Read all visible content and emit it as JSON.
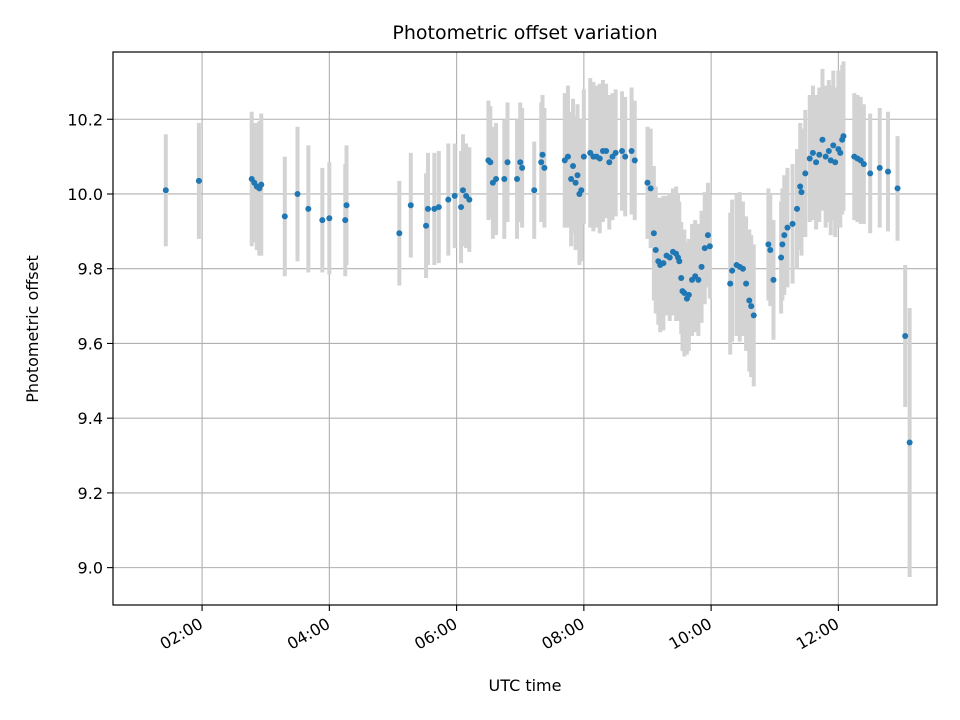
{
  "chart_data": {
    "type": "scatter",
    "title": "Photometric offset variation",
    "xlabel": "UTC time",
    "ylabel": "Photometric offset",
    "x_unit": "hours UTC",
    "xlim": [
      0.6,
      13.55
    ],
    "ylim": [
      8.9,
      10.38
    ],
    "x_ticks": [
      {
        "value": 2,
        "label": "02:00"
      },
      {
        "value": 4,
        "label": "04:00"
      },
      {
        "value": 6,
        "label": "06:00"
      },
      {
        "value": 8,
        "label": "08:00"
      },
      {
        "value": 10,
        "label": "10:00"
      },
      {
        "value": 12,
        "label": "12:00"
      }
    ],
    "y_ticks": [
      {
        "value": 9.0,
        "label": "9.0"
      },
      {
        "value": 9.2,
        "label": "9.2"
      },
      {
        "value": 9.4,
        "label": "9.4"
      },
      {
        "value": 9.6,
        "label": "9.6"
      },
      {
        "value": 9.8,
        "label": "9.8"
      },
      {
        "value": 10.0,
        "label": "10.0"
      },
      {
        "value": 10.2,
        "label": "10.2"
      }
    ],
    "grid": true,
    "colors": {
      "point": "#1f77b4",
      "errorbar": "#d3d3d3",
      "grid": "#b0b0b0"
    },
    "points": [
      [
        1.43,
        10.01,
        0.15
      ],
      [
        1.95,
        10.035,
        0.155
      ],
      [
        2.78,
        10.04,
        0.18
      ],
      [
        2.82,
        10.03,
        0.16
      ],
      [
        2.86,
        10.02,
        0.17
      ],
      [
        2.9,
        10.015,
        0.18
      ],
      [
        2.93,
        10.025,
        0.19
      ],
      [
        3.3,
        9.94,
        0.16
      ],
      [
        3.5,
        10.0,
        0.18
      ],
      [
        3.67,
        9.96,
        0.17
      ],
      [
        3.89,
        9.93,
        0.14
      ],
      [
        4.0,
        9.935,
        0.15
      ],
      [
        4.25,
        9.93,
        0.15
      ],
      [
        4.27,
        9.97,
        0.16
      ],
      [
        5.1,
        9.895,
        0.14
      ],
      [
        5.28,
        9.97,
        0.14
      ],
      [
        5.52,
        9.915,
        0.14
      ],
      [
        5.55,
        9.96,
        0.15
      ],
      [
        5.65,
        9.96,
        0.15
      ],
      [
        5.72,
        9.965,
        0.15
      ],
      [
        5.87,
        9.985,
        0.15
      ],
      [
        5.97,
        9.995,
        0.14
      ],
      [
        6.07,
        9.965,
        0.15
      ],
      [
        6.1,
        10.01,
        0.15
      ],
      [
        6.15,
        9.995,
        0.14
      ],
      [
        6.2,
        9.985,
        0.14
      ],
      [
        6.5,
        10.09,
        0.16
      ],
      [
        6.53,
        10.085,
        0.15
      ],
      [
        6.57,
        10.03,
        0.15
      ],
      [
        6.62,
        10.04,
        0.15
      ],
      [
        6.75,
        10.04,
        0.16
      ],
      [
        6.8,
        10.085,
        0.16
      ],
      [
        6.95,
        10.04,
        0.16
      ],
      [
        7.0,
        10.085,
        0.16
      ],
      [
        7.03,
        10.07,
        0.16
      ],
      [
        7.22,
        10.01,
        0.13
      ],
      [
        7.33,
        10.085,
        0.16
      ],
      [
        7.35,
        10.105,
        0.16
      ],
      [
        7.38,
        10.07,
        0.16
      ],
      [
        7.7,
        10.09,
        0.18
      ],
      [
        7.75,
        10.1,
        0.19
      ],
      [
        7.8,
        10.04,
        0.18
      ],
      [
        7.83,
        10.075,
        0.18
      ],
      [
        7.87,
        10.03,
        0.18
      ],
      [
        7.9,
        10.05,
        0.19
      ],
      [
        7.93,
        10.0,
        0.19
      ],
      [
        7.96,
        10.01,
        0.19
      ],
      [
        8.0,
        10.1,
        0.18
      ],
      [
        8.1,
        10.11,
        0.2
      ],
      [
        8.15,
        10.1,
        0.2
      ],
      [
        8.2,
        10.1,
        0.19
      ],
      [
        8.25,
        10.095,
        0.2
      ],
      [
        8.3,
        10.115,
        0.19
      ],
      [
        8.35,
        10.115,
        0.18
      ],
      [
        8.4,
        10.085,
        0.18
      ],
      [
        8.45,
        10.1,
        0.17
      ],
      [
        8.5,
        10.11,
        0.17
      ],
      [
        8.6,
        10.115,
        0.16
      ],
      [
        8.65,
        10.1,
        0.16
      ],
      [
        8.75,
        10.115,
        0.17
      ],
      [
        8.8,
        10.09,
        0.16
      ],
      [
        9.0,
        10.03,
        0.15
      ],
      [
        9.05,
        10.015,
        0.16
      ],
      [
        9.1,
        9.895,
        0.18
      ],
      [
        9.13,
        9.85,
        0.17
      ],
      [
        9.17,
        9.82,
        0.17
      ],
      [
        9.2,
        9.81,
        0.18
      ],
      [
        9.25,
        9.815,
        0.18
      ],
      [
        9.3,
        9.835,
        0.16
      ],
      [
        9.35,
        9.83,
        0.17
      ],
      [
        9.4,
        9.845,
        0.17
      ],
      [
        9.45,
        9.84,
        0.18
      ],
      [
        9.48,
        9.83,
        0.17
      ],
      [
        9.5,
        9.82,
        0.16
      ],
      [
        9.53,
        9.775,
        0.15
      ],
      [
        9.55,
        9.74,
        0.16
      ],
      [
        9.58,
        9.735,
        0.17
      ],
      [
        9.62,
        9.72,
        0.15
      ],
      [
        9.65,
        9.73,
        0.15
      ],
      [
        9.7,
        9.77,
        0.15
      ],
      [
        9.75,
        9.78,
        0.15
      ],
      [
        9.8,
        9.77,
        0.15
      ],
      [
        9.85,
        9.805,
        0.15
      ],
      [
        9.9,
        9.855,
        0.15
      ],
      [
        9.95,
        9.89,
        0.14
      ],
      [
        9.98,
        9.86,
        0.14
      ],
      [
        10.3,
        9.76,
        0.19
      ],
      [
        10.33,
        9.795,
        0.19
      ],
      [
        10.4,
        9.81,
        0.19
      ],
      [
        10.45,
        9.805,
        0.2
      ],
      [
        10.5,
        9.8,
        0.18
      ],
      [
        10.55,
        9.76,
        0.18
      ],
      [
        10.6,
        9.715,
        0.19
      ],
      [
        10.63,
        9.7,
        0.19
      ],
      [
        10.67,
        9.675,
        0.19
      ],
      [
        10.9,
        9.865,
        0.15
      ],
      [
        10.93,
        9.85,
        0.15
      ],
      [
        10.98,
        9.77,
        0.16
      ],
      [
        11.1,
        9.83,
        0.15
      ],
      [
        11.12,
        9.865,
        0.15
      ],
      [
        11.15,
        9.89,
        0.16
      ],
      [
        11.2,
        9.91,
        0.16
      ],
      [
        11.28,
        9.92,
        0.16
      ],
      [
        11.35,
        9.96,
        0.16
      ],
      [
        11.4,
        10.02,
        0.17
      ],
      [
        11.42,
        10.005,
        0.17
      ],
      [
        11.48,
        10.055,
        0.17
      ],
      [
        11.55,
        10.095,
        0.17
      ],
      [
        11.6,
        10.11,
        0.18
      ],
      [
        11.65,
        10.085,
        0.18
      ],
      [
        11.7,
        10.105,
        0.18
      ],
      [
        11.75,
        10.145,
        0.19
      ],
      [
        11.8,
        10.1,
        0.19
      ],
      [
        11.85,
        10.115,
        0.19
      ],
      [
        11.88,
        10.09,
        0.2
      ],
      [
        11.92,
        10.13,
        0.2
      ],
      [
        11.95,
        10.085,
        0.2
      ],
      [
        12.0,
        10.12,
        0.21
      ],
      [
        12.03,
        10.11,
        0.2
      ],
      [
        12.06,
        10.145,
        0.2
      ],
      [
        12.08,
        10.155,
        0.2
      ],
      [
        12.25,
        10.1,
        0.17
      ],
      [
        12.3,
        10.095,
        0.17
      ],
      [
        12.35,
        10.09,
        0.17
      ],
      [
        12.4,
        10.08,
        0.16
      ],
      [
        12.5,
        10.055,
        0.16
      ],
      [
        12.65,
        10.07,
        0.16
      ],
      [
        12.78,
        10.06,
        0.16
      ],
      [
        12.93,
        10.015,
        0.14
      ],
      [
        13.05,
        9.62,
        0.19
      ],
      [
        13.12,
        9.335,
        0.36
      ]
    ]
  }
}
